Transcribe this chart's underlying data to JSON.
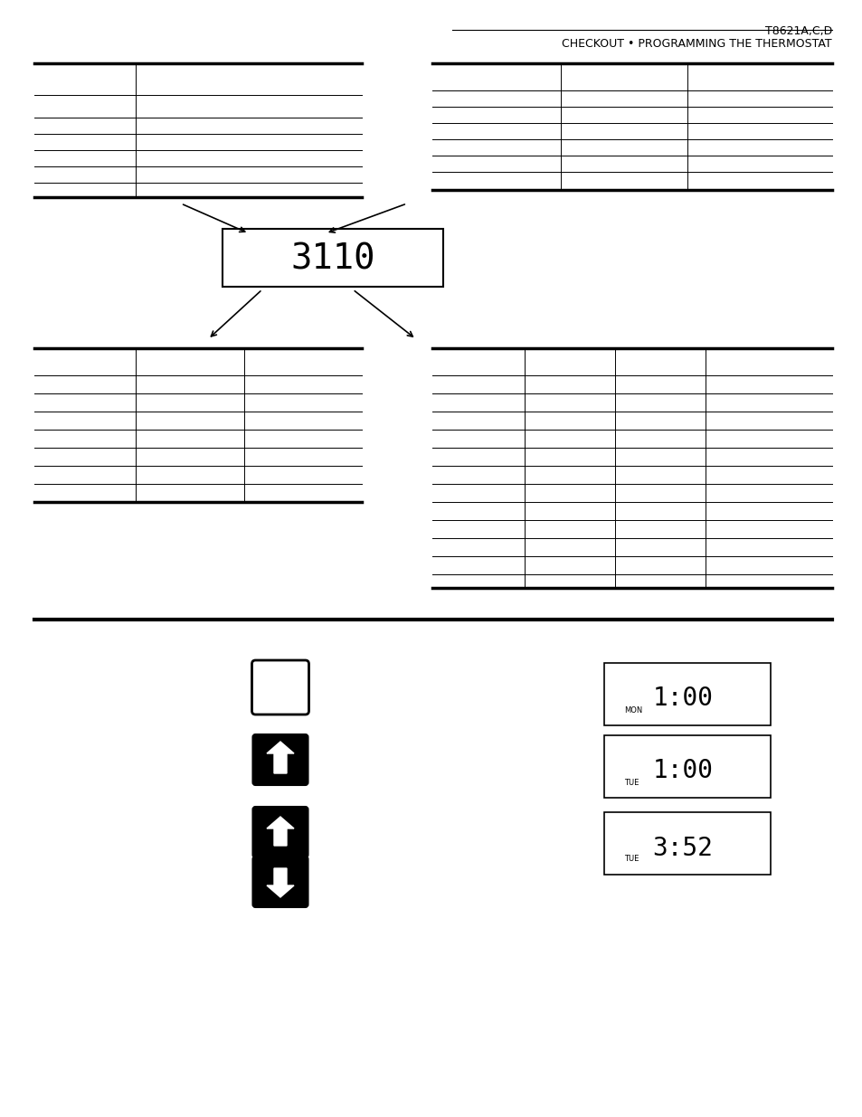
{
  "title_right": "T8621A,C,D",
  "subtitle_right": "CHECKOUT • PROGRAMMING THE THERMOSTAT",
  "bg_color": "#ffffff",
  "line_color": "#000000",
  "display_text_1": "3110",
  "display_label_mon": "MON",
  "display_label_tue": "TUE",
  "display_time_1": "1:00",
  "display_time_2": "1:00",
  "display_time_3": "3:52"
}
